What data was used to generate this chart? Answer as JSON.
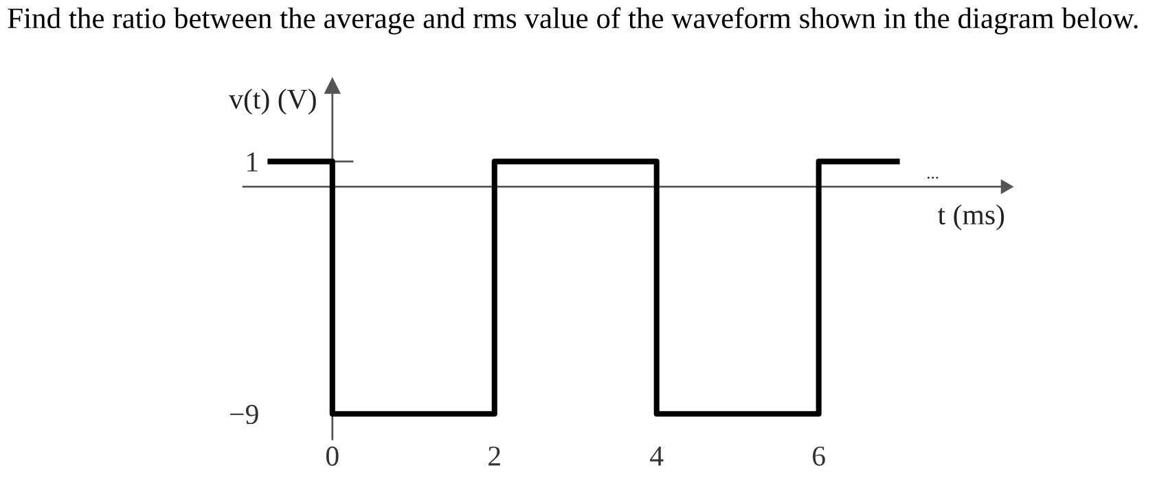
{
  "chart_data": {
    "type": "step",
    "title": "Find the ratio between the average and rms value of the waveform shown in the diagram below.",
    "xlabel": "t (ms)",
    "ylabel": "v(t) (V)",
    "x": [
      -0.8,
      0,
      2,
      4,
      6,
      7
    ],
    "series": [
      {
        "color": "#000000",
        "values": [
          1,
          -9,
          1,
          -9,
          1,
          1
        ]
      }
    ],
    "xlim": [
      -1.1,
      8.3
    ],
    "ylim": [
      -10,
      4
    ],
    "xticks": [
      0,
      2,
      4,
      6
    ],
    "yticks": [
      1,
      {
        "value": -9,
        "label": "−9"
      }
    ],
    "line_style": "solid",
    "annotations": [
      "..."
    ]
  }
}
